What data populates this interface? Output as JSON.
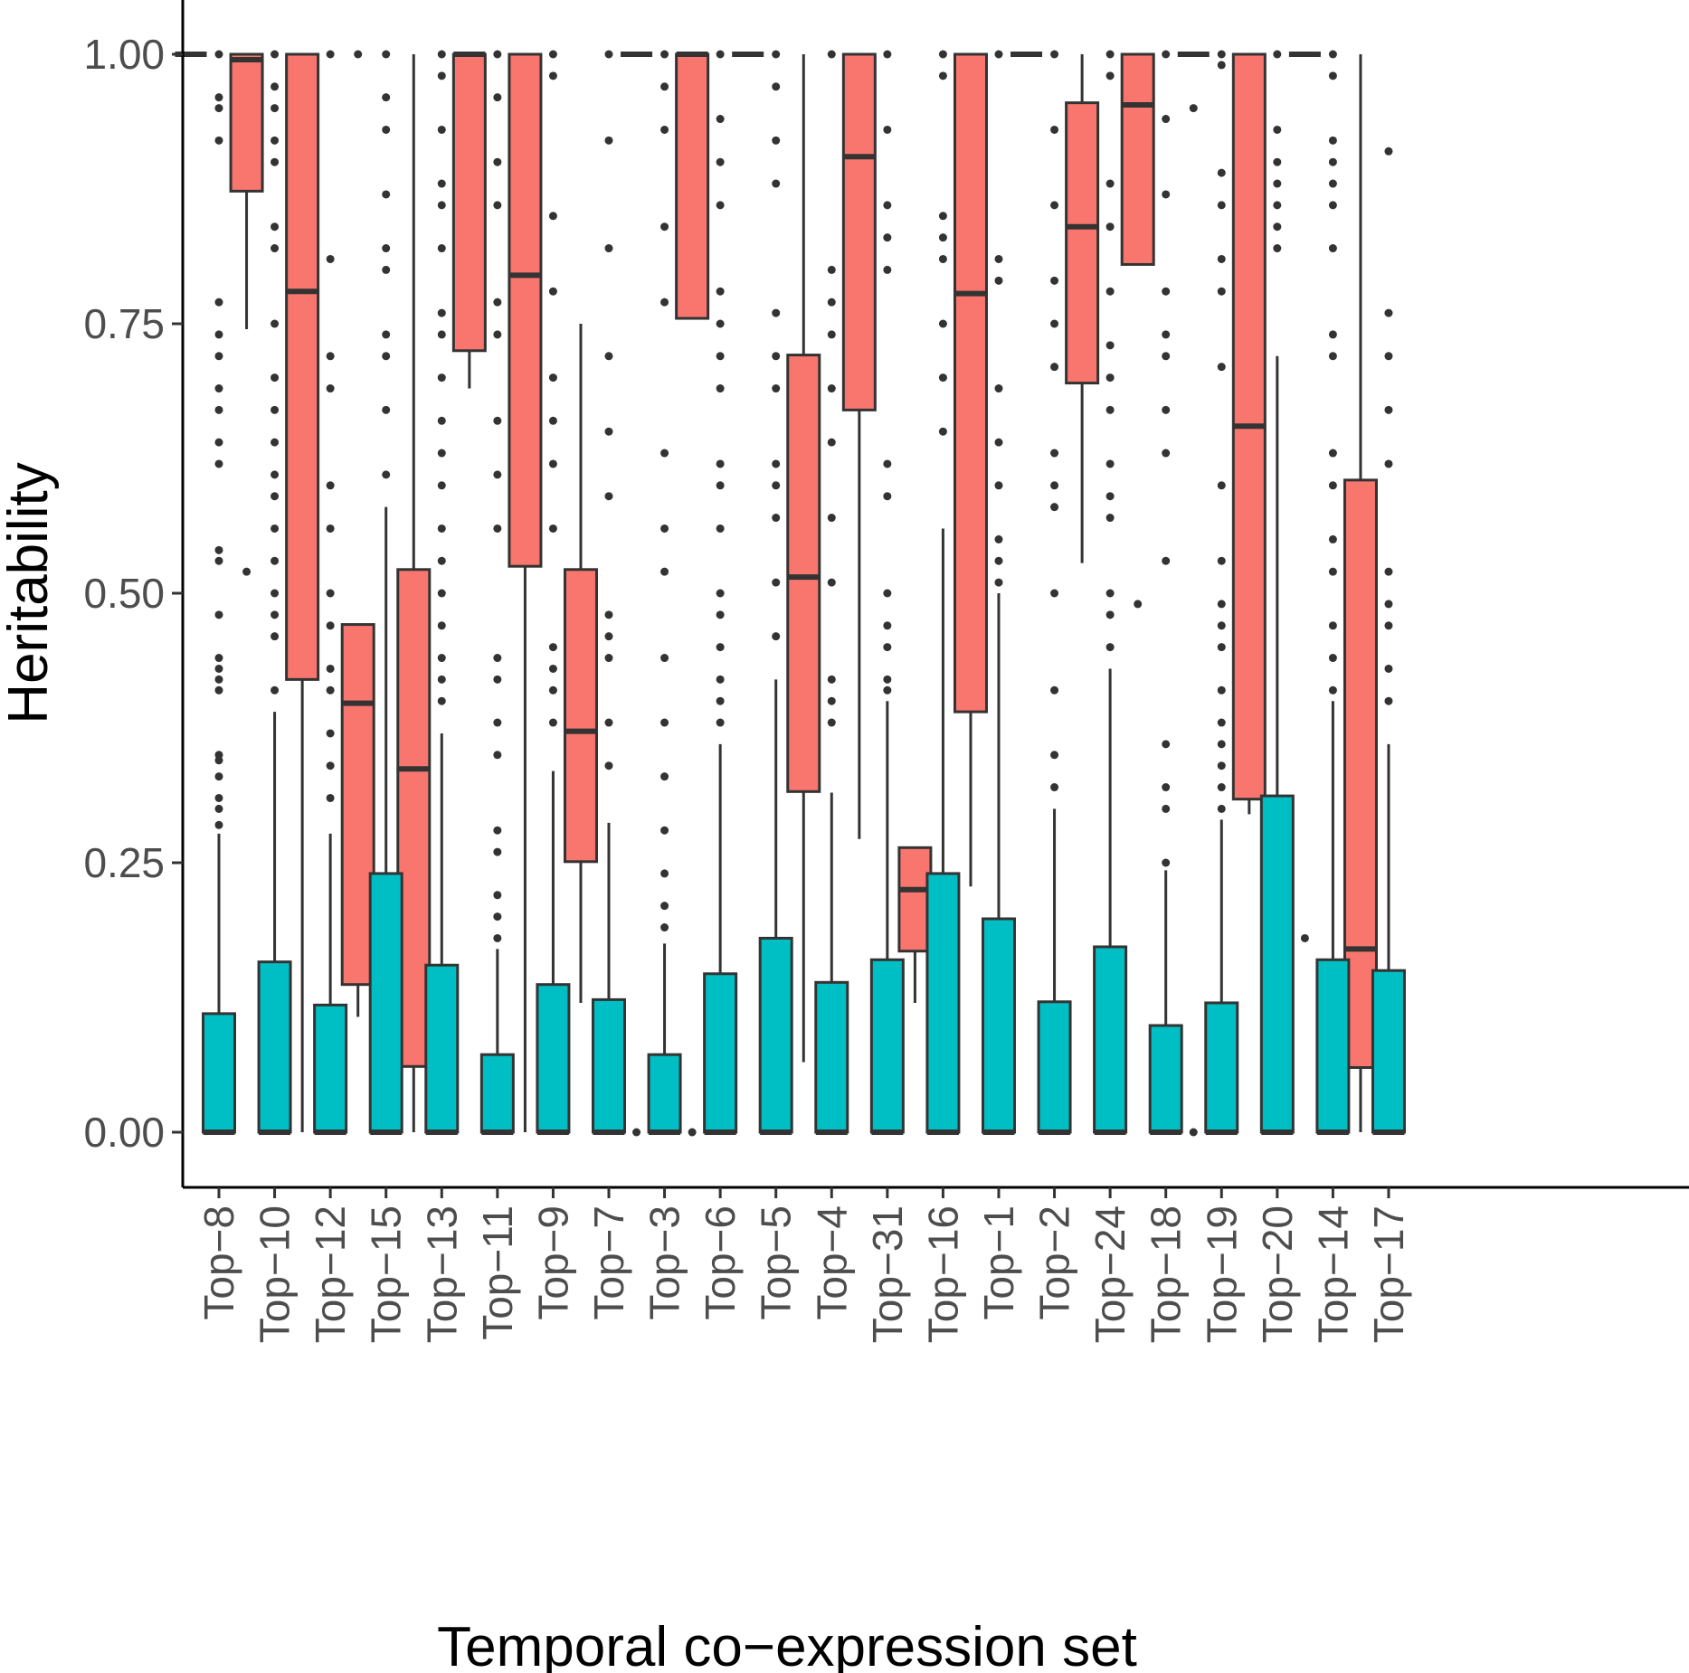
{
  "chart_data": {
    "type": "boxplot",
    "title": "",
    "xlabel": "Temporal co−expression set",
    "ylabel": "Heritability",
    "ylim": [
      -0.055,
      1.05
    ],
    "yticks": [
      0,
      0.25,
      0.5,
      0.75,
      1.0
    ],
    "ytick_labels": [
      "0.00",
      "0.25",
      "0.50",
      "0.75",
      "1.00"
    ],
    "grid": false,
    "legend": "none",
    "categories": [
      "Top−8",
      "Top−10",
      "Top−12",
      "Top−15",
      "Top−13",
      "Top−11",
      "Top−9",
      "Top−7",
      "Top−3",
      "Top−6",
      "Top−5",
      "Top−4",
      "Top−31",
      "Top−16",
      "Top−1",
      "Top−2",
      "Top−24",
      "Top−18",
      "Top−19",
      "Top−20",
      "Top−14",
      "Top−17"
    ],
    "series": [
      {
        "color": "#f8766d",
        "boxes": [
          {
            "q1": 1.0,
            "median": 1.0,
            "q3": 1.0,
            "whisker_low": 1.0,
            "whisker_high": 1.0,
            "outliers": []
          },
          {
            "q1": 0.873,
            "median": 0.995,
            "q3": 1.0,
            "whisker_low": 0.745,
            "whisker_high": 1.0,
            "outliers": [
              0.52
            ]
          },
          {
            "q1": 0.42,
            "median": 0.78,
            "q3": 1.0,
            "whisker_low": 0.0,
            "whisker_high": 1.0,
            "outliers": []
          },
          {
            "q1": 0.137,
            "median": 0.398,
            "q3": 0.471,
            "whisker_low": 0.107,
            "whisker_high": 0.471,
            "outliers": [
              1.0
            ]
          },
          {
            "q1": 0.061,
            "median": 0.337,
            "q3": 0.522,
            "whisker_low": 0.0,
            "whisker_high": 1.0,
            "outliers": []
          },
          {
            "q1": 0.725,
            "median": 1.0,
            "q3": 1.0,
            "whisker_low": 0.69,
            "whisker_high": 1.0,
            "outliers": []
          },
          {
            "q1": 0.525,
            "median": 0.795,
            "q3": 1.0,
            "whisker_low": 0.0,
            "whisker_high": 1.0,
            "outliers": []
          },
          {
            "q1": 0.251,
            "median": 0.372,
            "q3": 0.522,
            "whisker_low": 0.12,
            "whisker_high": 0.75,
            "outliers": []
          },
          {
            "q1": 1.0,
            "median": 1.0,
            "q3": 1.0,
            "whisker_low": 1.0,
            "whisker_high": 1.0,
            "outliers": [
              0.0
            ]
          },
          {
            "q1": 0.755,
            "median": 1.0,
            "q3": 1.0,
            "whisker_low": 0.755,
            "whisker_high": 1.0,
            "outliers": [
              0.0
            ]
          },
          {
            "q1": 1.0,
            "median": 1.0,
            "q3": 1.0,
            "whisker_low": 1.0,
            "whisker_high": 1.0,
            "outliers": []
          },
          {
            "q1": 0.316,
            "median": 0.515,
            "q3": 0.721,
            "whisker_low": 0.065,
            "whisker_high": 1.0,
            "outliers": []
          },
          {
            "q1": 0.67,
            "median": 0.905,
            "q3": 1.0,
            "whisker_low": 0.272,
            "whisker_high": 1.0,
            "outliers": []
          },
          {
            "q1": 0.168,
            "median": 0.225,
            "q3": 0.264,
            "whisker_low": 0.12,
            "whisker_high": 0.264,
            "outliers": []
          },
          {
            "q1": 0.39,
            "median": 0.778,
            "q3": 1.0,
            "whisker_low": 0.228,
            "whisker_high": 1.0,
            "outliers": []
          },
          {
            "q1": 1.0,
            "median": 1.0,
            "q3": 1.0,
            "whisker_low": 1.0,
            "whisker_high": 1.0,
            "outliers": []
          },
          {
            "q1": 0.695,
            "median": 0.84,
            "q3": 0.955,
            "whisker_low": 0.528,
            "whisker_high": 1.0,
            "outliers": []
          },
          {
            "q1": 0.805,
            "median": 0.953,
            "q3": 1.0,
            "whisker_low": 0.805,
            "whisker_high": 1.0,
            "outliers": [
              0.49
            ]
          },
          {
            "q1": 1.0,
            "median": 1.0,
            "q3": 1.0,
            "whisker_low": 1.0,
            "whisker_high": 1.0,
            "outliers": [
              0.95,
              0.0
            ]
          },
          {
            "q1": 0.309,
            "median": 0.655,
            "q3": 1.0,
            "whisker_low": 0.295,
            "whisker_high": 1.0,
            "outliers": []
          },
          {
            "q1": 1.0,
            "median": 1.0,
            "q3": 1.0,
            "whisker_low": 1.0,
            "whisker_high": 1.0,
            "outliers": [
              0.18
            ]
          },
          {
            "q1": 0.06,
            "median": 0.17,
            "q3": 0.605,
            "whisker_low": 0.0,
            "whisker_high": 1.0,
            "outliers": []
          }
        ]
      },
      {
        "color": "#00bfc4",
        "boxes": [
          {
            "q1": 0.0,
            "median": 0.0,
            "q3": 0.11,
            "whisker_low": 0.0,
            "whisker_high": 0.277,
            "outliers": [
              0.285,
              0.3,
              0.31,
              0.33,
              0.345,
              0.35,
              0.41,
              0.42,
              0.43,
              0.44,
              0.48,
              0.53,
              0.54,
              0.62,
              0.64,
              0.67,
              0.69,
              0.72,
              0.74,
              0.77,
              0.92,
              0.95,
              0.96,
              1.0
            ]
          },
          {
            "q1": 0.0,
            "median": 0.0,
            "q3": 0.158,
            "whisker_low": 0.0,
            "whisker_high": 0.39,
            "outliers": [
              0.41,
              0.46,
              0.48,
              0.5,
              0.53,
              0.56,
              0.59,
              0.61,
              0.64,
              0.67,
              0.7,
              0.75,
              0.82,
              0.84,
              0.9,
              0.92,
              0.95,
              0.97,
              1.0
            ]
          },
          {
            "q1": 0.0,
            "median": 0.0,
            "q3": 0.118,
            "whisker_low": 0.0,
            "whisker_high": 0.277,
            "outliers": [
              0.31,
              0.34,
              0.37,
              0.41,
              0.43,
              0.47,
              0.5,
              0.56,
              0.6,
              0.69,
              0.72,
              0.81,
              1.0
            ]
          },
          {
            "q1": 0.0,
            "median": 0.0,
            "q3": 0.24,
            "whisker_low": 0.0,
            "whisker_high": 0.58,
            "outliers": [
              0.61,
              0.67,
              0.72,
              0.74,
              0.8,
              0.82,
              0.87,
              0.93,
              0.96,
              1.0
            ]
          },
          {
            "q1": 0.0,
            "median": 0.0,
            "q3": 0.155,
            "whisker_low": 0.0,
            "whisker_high": 0.37,
            "outliers": [
              0.4,
              0.42,
              0.44,
              0.47,
              0.5,
              0.53,
              0.56,
              0.6,
              0.63,
              0.66,
              0.7,
              0.74,
              0.76,
              0.82,
              0.86,
              0.88,
              0.93,
              0.98,
              1.0
            ]
          },
          {
            "q1": 0.0,
            "median": 0.0,
            "q3": 0.072,
            "whisker_low": 0.0,
            "whisker_high": 0.17,
            "outliers": [
              0.18,
              0.2,
              0.22,
              0.26,
              0.28,
              0.35,
              0.38,
              0.42,
              0.44,
              0.56,
              0.61,
              0.66,
              0.74,
              0.77,
              0.86,
              0.9,
              0.96,
              1.0
            ]
          },
          {
            "q1": 0.0,
            "median": 0.0,
            "q3": 0.137,
            "whisker_low": 0.0,
            "whisker_high": 0.335,
            "outliers": [
              0.38,
              0.41,
              0.43,
              0.45,
              0.56,
              0.62,
              0.66,
              0.7,
              0.78,
              0.85,
              0.98,
              1.0
            ]
          },
          {
            "q1": 0.0,
            "median": 0.0,
            "q3": 0.123,
            "whisker_low": 0.0,
            "whisker_high": 0.287,
            "outliers": [
              0.34,
              0.38,
              0.44,
              0.46,
              0.48,
              0.59,
              0.65,
              0.72,
              0.82,
              0.92,
              1.0
            ]
          },
          {
            "q1": 0.0,
            "median": 0.0,
            "q3": 0.072,
            "whisker_low": 0.0,
            "whisker_high": 0.175,
            "outliers": [
              0.19,
              0.21,
              0.24,
              0.28,
              0.33,
              0.38,
              0.44,
              0.52,
              0.56,
              0.63,
              0.77,
              0.84,
              0.93,
              0.97,
              1.0
            ]
          },
          {
            "q1": 0.0,
            "median": 0.0,
            "q3": 0.147,
            "whisker_low": 0.0,
            "whisker_high": 0.36,
            "outliers": [
              0.38,
              0.4,
              0.42,
              0.45,
              0.48,
              0.5,
              0.56,
              0.6,
              0.62,
              0.69,
              0.72,
              0.75,
              0.78,
              0.86,
              0.9,
              0.94,
              1.0
            ]
          },
          {
            "q1": 0.0,
            "median": 0.0,
            "q3": 0.18,
            "whisker_low": 0.0,
            "whisker_high": 0.42,
            "outliers": [
              0.46,
              0.51,
              0.57,
              0.6,
              0.62,
              0.69,
              0.72,
              0.76,
              0.88,
              0.92,
              0.97,
              1.0
            ]
          },
          {
            "q1": 0.0,
            "median": 0.0,
            "q3": 0.139,
            "whisker_low": 0.0,
            "whisker_high": 0.315,
            "outliers": [
              0.38,
              0.4,
              0.42,
              0.51,
              0.57,
              0.64,
              0.69,
              0.74,
              0.77,
              0.8,
              1.0
            ]
          },
          {
            "q1": 0.0,
            "median": 0.0,
            "q3": 0.16,
            "whisker_low": 0.0,
            "whisker_high": 0.4,
            "outliers": [
              0.41,
              0.42,
              0.45,
              0.47,
              0.5,
              0.59,
              0.62,
              0.8,
              0.83,
              0.86,
              0.93,
              1.0
            ]
          },
          {
            "q1": 0.0,
            "median": 0.0,
            "q3": 0.24,
            "whisker_low": 0.0,
            "whisker_high": 0.56,
            "outliers": [
              0.65,
              0.7,
              0.75,
              0.81,
              0.83,
              0.85,
              0.98,
              1.0
            ]
          },
          {
            "q1": 0.0,
            "median": 0.0,
            "q3": 0.198,
            "whisker_low": 0.0,
            "whisker_high": 0.5,
            "outliers": [
              0.51,
              0.53,
              0.55,
              0.6,
              0.64,
              0.69,
              0.79,
              0.81,
              1.0
            ]
          },
          {
            "q1": 0.0,
            "median": 0.0,
            "q3": 0.121,
            "whisker_low": 0.0,
            "whisker_high": 0.3,
            "outliers": [
              0.32,
              0.35,
              0.41,
              0.5,
              0.58,
              0.6,
              0.63,
              0.71,
              0.75,
              0.79,
              0.86,
              0.93,
              1.0
            ]
          },
          {
            "q1": 0.0,
            "median": 0.0,
            "q3": 0.172,
            "whisker_low": 0.0,
            "whisker_high": 0.43,
            "outliers": [
              0.45,
              0.48,
              0.5,
              0.57,
              0.59,
              0.62,
              0.67,
              0.7,
              0.73,
              0.78,
              0.84,
              0.88,
              0.98,
              1.0
            ]
          },
          {
            "q1": 0.0,
            "median": 0.0,
            "q3": 0.099,
            "whisker_low": 0.0,
            "whisker_high": 0.243,
            "outliers": [
              0.25,
              0.3,
              0.32,
              0.36,
              0.53,
              0.63,
              0.67,
              0.72,
              0.74,
              0.78,
              0.87,
              0.94,
              1.0
            ]
          },
          {
            "q1": 0.0,
            "median": 0.0,
            "q3": 0.12,
            "whisker_low": 0.0,
            "whisker_high": 0.29,
            "outliers": [
              0.3,
              0.32,
              0.34,
              0.36,
              0.38,
              0.41,
              0.45,
              0.47,
              0.49,
              0.53,
              0.6,
              0.71,
              0.78,
              0.81,
              0.86,
              0.89,
              0.99,
              1.0
            ]
          },
          {
            "q1": 0.0,
            "median": 0.0,
            "q3": 0.312,
            "whisker_low": 0.0,
            "whisker_high": 0.72,
            "outliers": [
              0.82,
              0.84,
              0.86,
              0.88,
              0.9,
              0.93,
              1.0
            ]
          },
          {
            "q1": 0.0,
            "median": 0.0,
            "q3": 0.16,
            "whisker_low": 0.0,
            "whisker_high": 0.4,
            "outliers": [
              0.41,
              0.44,
              0.47,
              0.52,
              0.55,
              0.6,
              0.63,
              0.72,
              0.74,
              0.82,
              0.86,
              0.88,
              0.9,
              0.92,
              0.98,
              1.0
            ]
          },
          {
            "q1": 0.0,
            "median": 0.0,
            "q3": 0.15,
            "whisker_low": 0.0,
            "whisker_high": 0.36,
            "outliers": [
              0.4,
              0.43,
              0.47,
              0.49,
              0.52,
              0.62,
              0.67,
              0.72,
              0.76,
              0.91
            ]
          }
        ]
      }
    ]
  }
}
